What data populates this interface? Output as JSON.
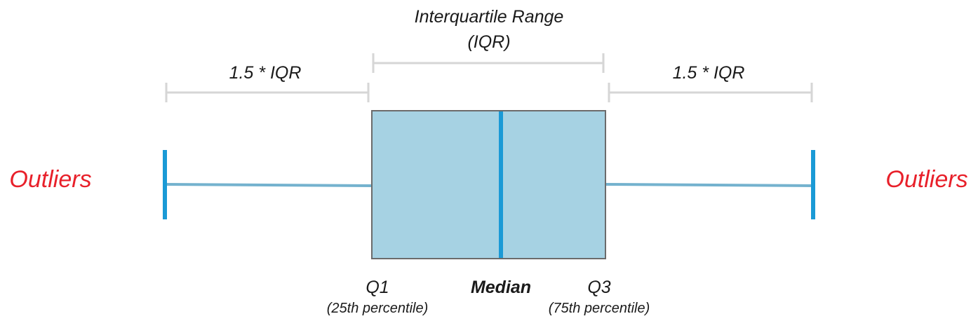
{
  "labels": {
    "iqr_title_line1": "Interquartile Range",
    "iqr_title_line2": "(IQR)",
    "left_span": "1.5 * IQR",
    "right_span": "1.5 * IQR",
    "outliers_left": "Outliers",
    "outliers_right": "Outliers",
    "q1": "Q1",
    "q1_sub": "(25th percentile)",
    "median": "Median",
    "q3": "Q3",
    "q3_sub": "(75th percentile)"
  },
  "colors": {
    "box_fill": "#a6d2e3",
    "box_stroke": "#6b6b6b",
    "median_line": "#1a9ad6",
    "whisker": "#74b2ce",
    "whisker_cap": "#1a9ad6",
    "bracket": "#d6d6d6",
    "outlier_text": "#e8202a"
  }
}
